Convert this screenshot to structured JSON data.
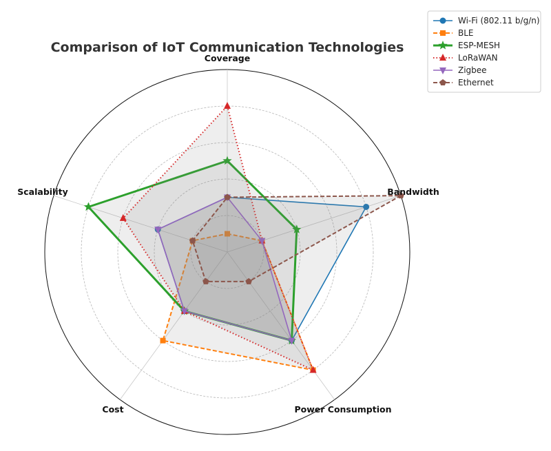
{
  "chart_data": {
    "type": "radar",
    "title": "Comparison of IoT Communication Technologies",
    "axes": [
      "Coverage",
      "Bandwidth",
      "Power Consumption",
      "Cost",
      "Scalability"
    ],
    "rlim": [
      0,
      10
    ],
    "grid": true,
    "legend_position": "top-right",
    "series": [
      {
        "name": "Wi-Fi (802.11 b/g/n)",
        "values": [
          3,
          8,
          6,
          4,
          4
        ],
        "color": "#1f77b4",
        "marker": "circle",
        "line": "solid"
      },
      {
        "name": "BLE",
        "values": [
          1,
          2,
          8,
          6,
          2
        ],
        "color": "#ff7f0e",
        "marker": "square",
        "line": "dashed"
      },
      {
        "name": "ESP-MESH",
        "values": [
          5,
          4,
          6,
          4,
          8
        ],
        "color": "#2ca02c",
        "marker": "star",
        "line": "solid-thick"
      },
      {
        "name": "LoRaWAN",
        "values": [
          8,
          2,
          8,
          4,
          6
        ],
        "color": "#d62728",
        "marker": "triangle-up",
        "line": "dotted"
      },
      {
        "name": "Zigbee",
        "values": [
          3,
          2,
          6,
          4,
          4
        ],
        "color": "#9467bd",
        "marker": "triangle-down",
        "line": "solid"
      },
      {
        "name": "Ethernet",
        "values": [
          3,
          10,
          2,
          2,
          2
        ],
        "color": "#8c564b",
        "marker": "pentagon",
        "line": "dashed"
      }
    ]
  }
}
